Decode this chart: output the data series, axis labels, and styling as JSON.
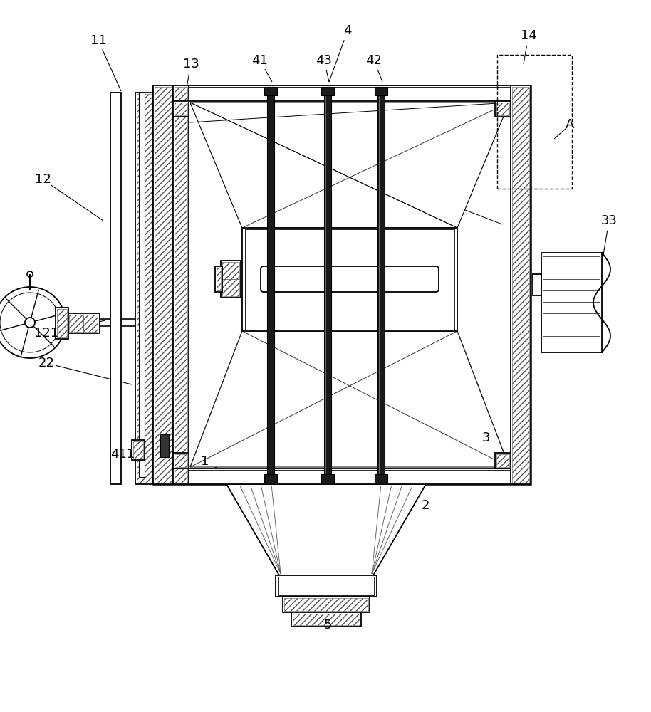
{
  "bg_color": "#ffffff",
  "line_color": "#000000",
  "figsize": [
    9.14,
    10.0
  ],
  "dpi": 100
}
